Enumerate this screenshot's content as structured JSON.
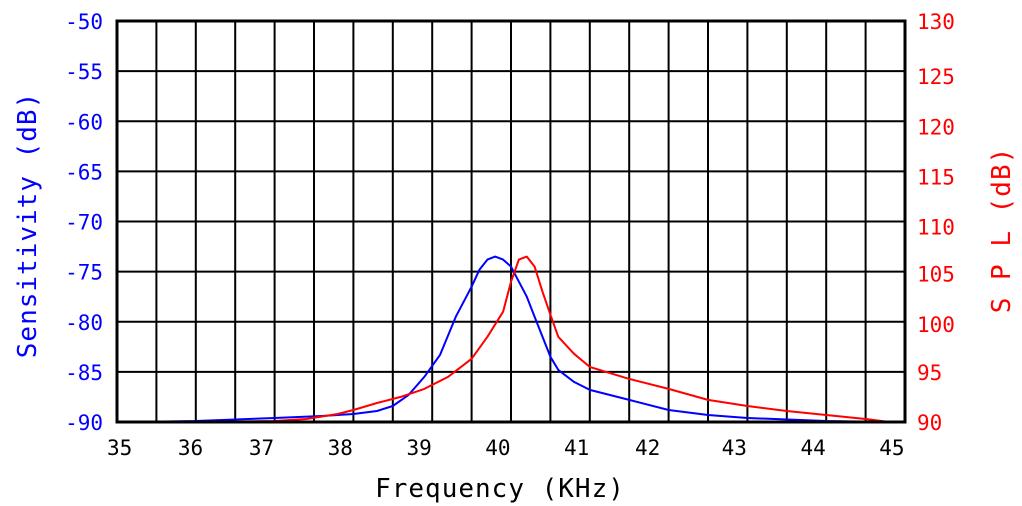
{
  "chart_data": {
    "type": "line",
    "title": "",
    "xlabel": "Frequency (KHz)",
    "ylabel_left": "Sensitivity (dB)",
    "ylabel_right": "S P L (dB)",
    "xlim": [
      35,
      45
    ],
    "ylim_left": [
      -90,
      -50
    ],
    "ylim_right": [
      90,
      130
    ],
    "grid": true,
    "x_ticks": [
      "35",
      "36",
      "37",
      "38",
      "39",
      "40",
      "41",
      "42",
      "43",
      "44",
      "45"
    ],
    "x_tick_values": [
      35,
      35.9,
      36.8,
      37.8,
      38.8,
      39.8,
      40.8,
      41.7,
      42.8,
      43.8,
      44.8
    ],
    "y_left_ticks": [
      "-50",
      "-55",
      "-60",
      "-65",
      "-70",
      "-75",
      "-80",
      "-85",
      "-90"
    ],
    "y_left_tick_values": [
      -50,
      -55,
      -60,
      -65,
      -70,
      -75,
      -80,
      -85,
      -90
    ],
    "y_right_ticks": [
      "130",
      "125",
      "120",
      "115",
      "110",
      "105",
      "100",
      "95",
      "90"
    ],
    "y_right_tick_values": [
      130,
      124.5,
      119.5,
      114.5,
      109.5,
      104.8,
      99.8,
      95,
      90
    ],
    "series": [
      {
        "name": "Sensitivity",
        "axis": "left",
        "color": "#0000ff",
        "x": [
          35.2,
          36.0,
          37.0,
          37.6,
          38.0,
          38.3,
          38.5,
          38.7,
          38.9,
          39.1,
          39.3,
          39.5,
          39.6,
          39.7,
          39.8,
          39.9,
          40.0,
          40.1,
          40.2,
          40.3,
          40.4,
          40.5,
          40.6,
          40.8,
          41.0,
          41.5,
          42.0,
          42.5,
          43.0,
          44.0,
          44.8
        ],
        "y": [
          -90.0,
          -89.9,
          -89.6,
          -89.4,
          -89.2,
          -88.9,
          -88.4,
          -87.3,
          -85.5,
          -83.3,
          -79.5,
          -76.5,
          -74.8,
          -73.8,
          -73.5,
          -73.8,
          -74.5,
          -76.0,
          -77.5,
          -79.5,
          -81.5,
          -83.5,
          -84.8,
          -86.0,
          -86.8,
          -87.8,
          -88.8,
          -89.3,
          -89.6,
          -89.9,
          -90.0
        ]
      },
      {
        "name": "SPL",
        "axis": "right",
        "color": "#ff0000",
        "x": [
          35.2,
          36.0,
          37.0,
          37.4,
          37.8,
          38.0,
          38.3,
          38.6,
          38.9,
          39.2,
          39.5,
          39.7,
          39.9,
          40.0,
          40.1,
          40.2,
          40.3,
          40.4,
          40.5,
          40.6,
          40.8,
          41.0,
          41.5,
          42.0,
          42.5,
          43.0,
          43.5,
          44.0,
          44.5,
          44.8
        ],
        "y": [
          90.0,
          90.0,
          90.1,
          90.3,
          90.8,
          91.2,
          91.9,
          92.5,
          93.3,
          94.5,
          96.3,
          98.5,
          101.0,
          104.0,
          106.2,
          106.5,
          105.5,
          103.0,
          100.7,
          98.5,
          96.8,
          95.5,
          94.3,
          93.3,
          92.2,
          91.6,
          91.1,
          90.7,
          90.3,
          90.0
        ]
      }
    ]
  }
}
